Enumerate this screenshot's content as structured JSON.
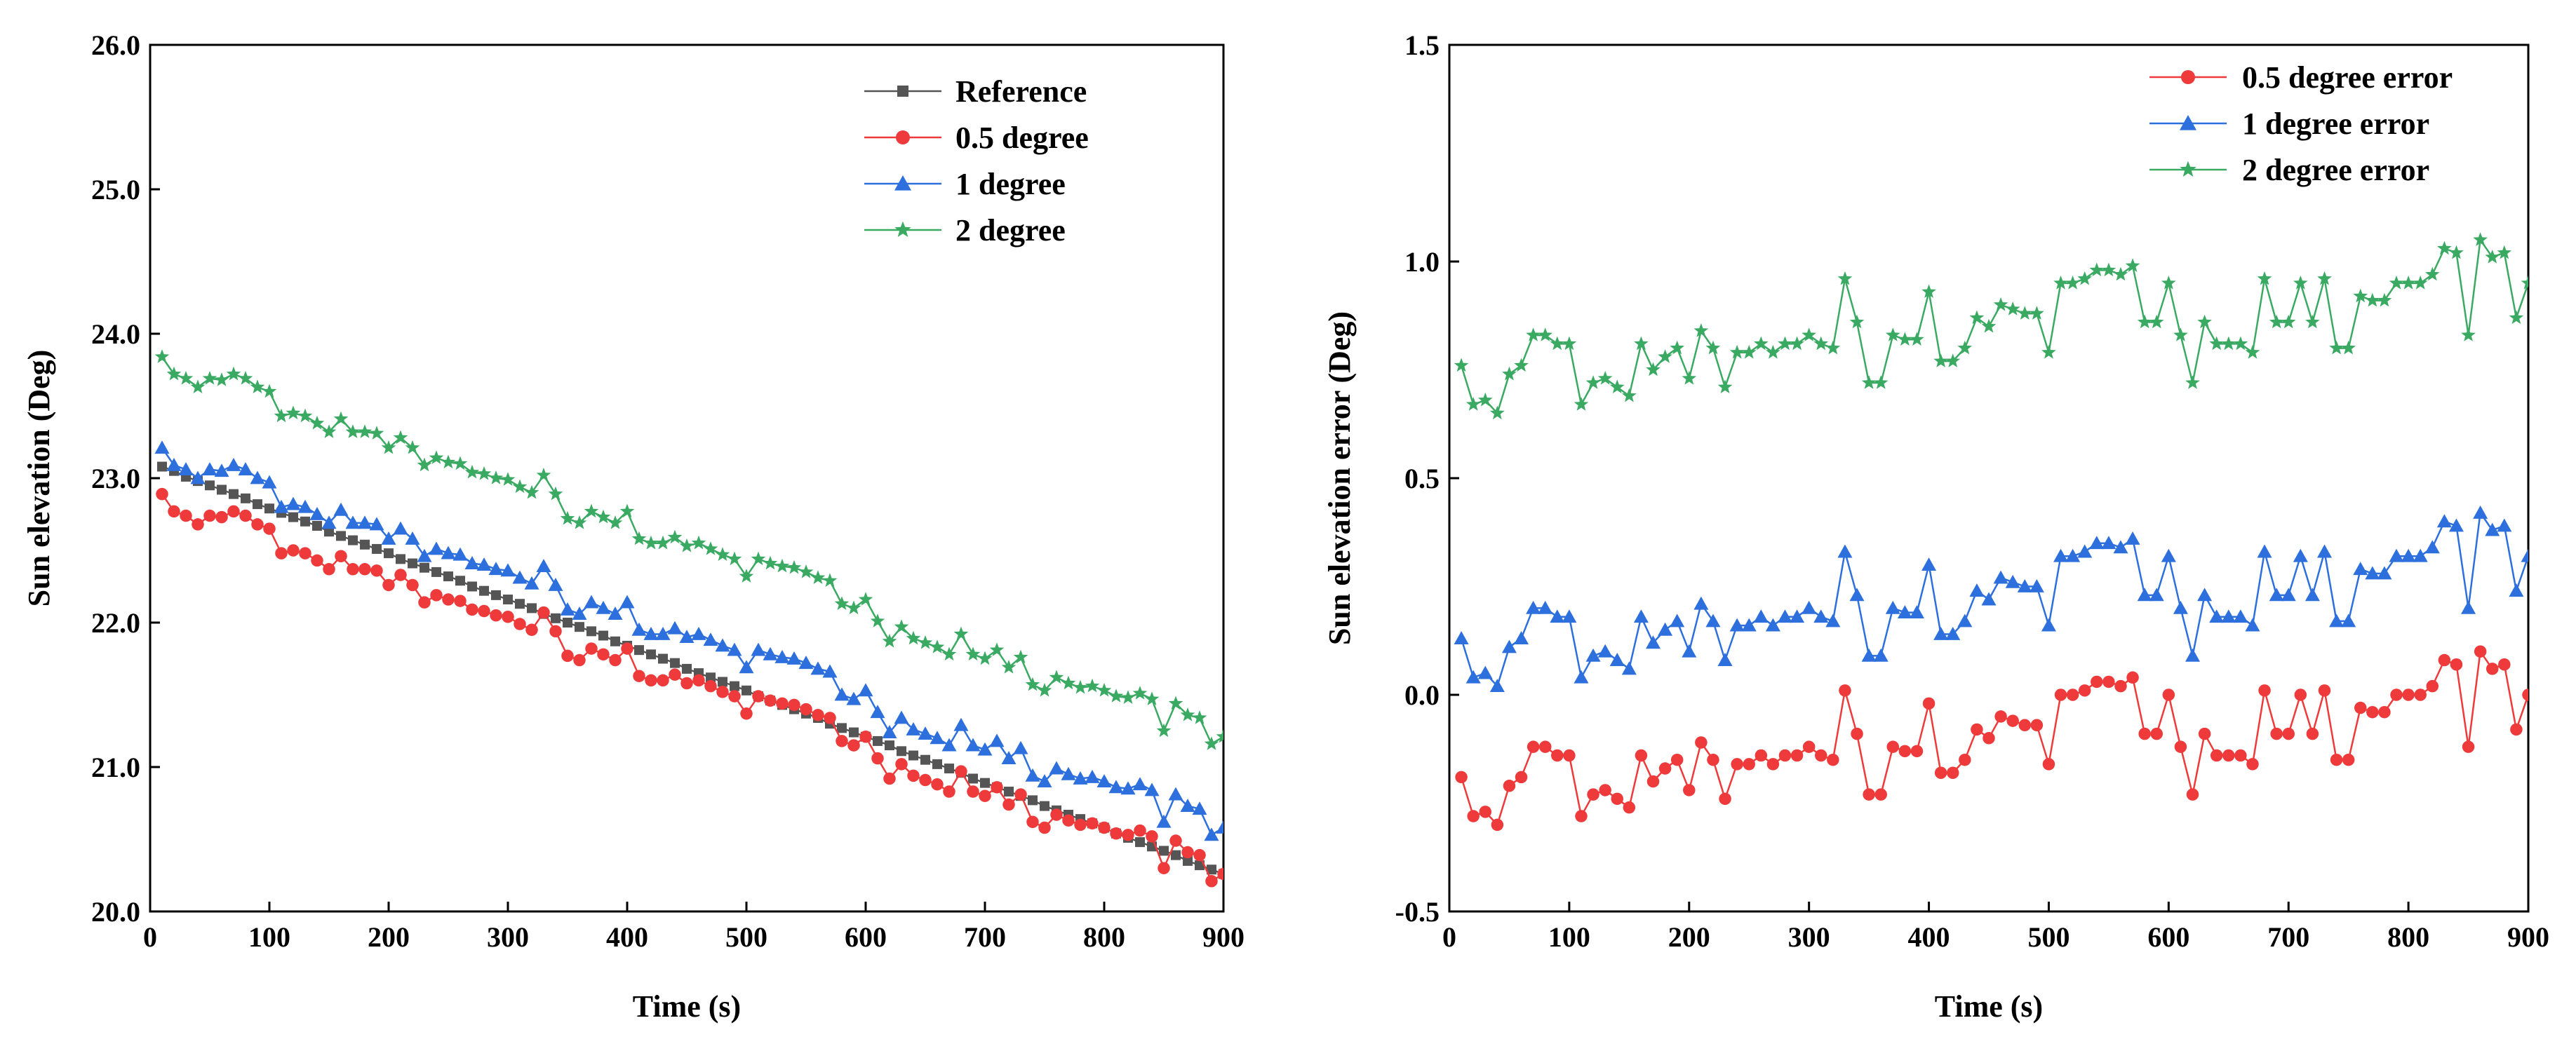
{
  "chart_data": [
    {
      "type": "line",
      "title": "",
      "xlabel": "Time (s)",
      "ylabel": "Sun elevation (Deg)",
      "xlim": [
        0,
        900
      ],
      "ylim": [
        20.0,
        26.0
      ],
      "xticks": [
        0,
        100,
        200,
        300,
        400,
        500,
        600,
        700,
        800,
        900
      ],
      "yticks": [
        20.0,
        21.0,
        22.0,
        23.0,
        24.0,
        25.0,
        26.0
      ],
      "xtick_labels": [
        "0",
        "100",
        "200",
        "300",
        "400",
        "500",
        "600",
        "700",
        "800",
        "900"
      ],
      "ytick_labels": [
        "20.0",
        "21.0",
        "22.0",
        "23.0",
        "24.0",
        "25.0",
        "26.0"
      ],
      "legend_position": "top-right",
      "x": [
        10,
        20,
        30,
        40,
        50,
        60,
        70,
        80,
        90,
        100,
        110,
        120,
        130,
        140,
        150,
        160,
        170,
        180,
        190,
        200,
        210,
        220,
        230,
        240,
        250,
        260,
        270,
        280,
        290,
        300,
        310,
        320,
        330,
        340,
        350,
        360,
        370,
        380,
        390,
        400,
        410,
        420,
        430,
        440,
        450,
        460,
        470,
        480,
        490,
        500,
        510,
        520,
        530,
        540,
        550,
        560,
        570,
        580,
        590,
        600,
        610,
        620,
        630,
        640,
        650,
        660,
        670,
        680,
        690,
        700,
        710,
        720,
        730,
        740,
        750,
        760,
        770,
        780,
        790,
        800,
        810,
        820,
        830,
        840,
        850,
        860,
        870,
        880,
        890,
        900
      ],
      "series": [
        {
          "name": "Reference",
          "color": "#555555",
          "marker": "square",
          "values": [
            23.08,
            23.05,
            23.01,
            22.98,
            22.95,
            22.92,
            22.89,
            22.86,
            22.82,
            22.79,
            22.76,
            22.73,
            22.7,
            22.67,
            22.63,
            22.6,
            22.57,
            22.54,
            22.51,
            22.48,
            22.44,
            22.41,
            22.38,
            22.35,
            22.32,
            22.29,
            22.25,
            22.22,
            22.19,
            22.16,
            22.13,
            22.1,
            22.06,
            22.03,
            22.0,
            21.97,
            21.94,
            21.91,
            21.87,
            21.84,
            21.81,
            21.78,
            21.75,
            21.72,
            21.68,
            21.65,
            21.62,
            21.59,
            21.56,
            21.53,
            21.49,
            21.46,
            21.43,
            21.4,
            21.37,
            21.34,
            21.3,
            21.27,
            21.24,
            21.21,
            21.18,
            21.15,
            21.11,
            21.08,
            21.05,
            21.02,
            20.99,
            20.96,
            20.92,
            20.89,
            20.86,
            20.83,
            20.8,
            20.77,
            20.73,
            20.7,
            20.67,
            20.64,
            20.61,
            20.58,
            20.54,
            20.51,
            20.48,
            20.45,
            20.42,
            20.39,
            20.35,
            20.32,
            20.29,
            20.26
          ]
        },
        {
          "name": "0.5 degree",
          "color": "#ee3a3a",
          "marker": "circle",
          "values": [
            22.89,
            22.77,
            22.74,
            22.68,
            22.74,
            22.73,
            22.77,
            22.74,
            22.68,
            22.65,
            22.48,
            22.5,
            22.48,
            22.43,
            22.37,
            22.46,
            22.37,
            22.37,
            22.36,
            22.26,
            22.33,
            22.26,
            22.14,
            22.19,
            22.16,
            22.15,
            22.09,
            22.08,
            22.05,
            22.04,
            21.99,
            21.95,
            22.07,
            21.94,
            21.77,
            21.74,
            21.82,
            21.78,
            21.74,
            21.82,
            21.63,
            21.6,
            21.6,
            21.64,
            21.58,
            21.6,
            21.56,
            21.52,
            21.49,
            21.37,
            21.49,
            21.46,
            21.44,
            21.43,
            21.4,
            21.36,
            21.34,
            21.18,
            21.15,
            21.21,
            21.06,
            20.92,
            21.02,
            20.94,
            20.91,
            20.88,
            20.83,
            20.97,
            20.83,
            20.8,
            20.86,
            20.74,
            20.81,
            20.62,
            20.58,
            20.67,
            20.63,
            20.6,
            20.61,
            20.58,
            20.54,
            20.53,
            20.56,
            20.52,
            20.3,
            20.49,
            20.41,
            20.39,
            20.21,
            20.26
          ]
        },
        {
          "name": "1 degree",
          "color": "#2c6fdd",
          "marker": "triangle",
          "values": [
            23.21,
            23.09,
            23.06,
            23.0,
            23.06,
            23.05,
            23.09,
            23.06,
            23.0,
            22.97,
            22.8,
            22.82,
            22.8,
            22.75,
            22.69,
            22.78,
            22.69,
            22.69,
            22.68,
            22.58,
            22.65,
            22.58,
            22.46,
            22.51,
            22.48,
            22.47,
            22.41,
            22.4,
            22.37,
            22.36,
            22.31,
            22.27,
            22.39,
            22.26,
            22.09,
            22.06,
            22.14,
            22.1,
            22.06,
            22.14,
            21.95,
            21.92,
            21.92,
            21.96,
            21.9,
            21.92,
            21.88,
            21.84,
            21.81,
            21.69,
            21.81,
            21.78,
            21.76,
            21.75,
            21.72,
            21.68,
            21.66,
            21.5,
            21.47,
            21.53,
            21.38,
            21.24,
            21.34,
            21.26,
            21.23,
            21.2,
            21.15,
            21.29,
            21.15,
            21.12,
            21.18,
            21.06,
            21.13,
            20.94,
            20.9,
            20.99,
            20.95,
            20.92,
            20.93,
            20.9,
            20.86,
            20.85,
            20.88,
            20.84,
            20.62,
            20.81,
            20.73,
            20.71,
            20.53,
            20.58
          ]
        },
        {
          "name": "2 degree",
          "color": "#3aaa62",
          "marker": "star",
          "values": [
            23.84,
            23.72,
            23.69,
            23.63,
            23.69,
            23.68,
            23.72,
            23.69,
            23.63,
            23.6,
            23.43,
            23.45,
            23.43,
            23.38,
            23.32,
            23.41,
            23.32,
            23.32,
            23.31,
            23.21,
            23.28,
            23.21,
            23.09,
            23.14,
            23.11,
            23.1,
            23.04,
            23.03,
            23.0,
            22.99,
            22.94,
            22.9,
            23.02,
            22.89,
            22.72,
            22.69,
            22.77,
            22.73,
            22.69,
            22.77,
            22.58,
            22.55,
            22.55,
            22.59,
            22.53,
            22.55,
            22.51,
            22.47,
            22.44,
            22.32,
            22.44,
            22.41,
            22.39,
            22.38,
            22.35,
            22.31,
            22.29,
            22.13,
            22.1,
            22.16,
            22.01,
            21.87,
            21.97,
            21.89,
            21.86,
            21.83,
            21.78,
            21.92,
            21.78,
            21.75,
            21.81,
            21.69,
            21.76,
            21.57,
            21.53,
            21.62,
            21.58,
            21.55,
            21.56,
            21.53,
            21.49,
            21.48,
            21.51,
            21.47,
            21.25,
            21.44,
            21.36,
            21.34,
            21.16,
            21.21
          ]
        }
      ]
    },
    {
      "type": "line",
      "title": "",
      "xlabel": "Time (s)",
      "ylabel": "Sun elevation error (Deg)",
      "xlim": [
        0,
        900
      ],
      "ylim": [
        -0.5,
        1.5
      ],
      "xticks": [
        0,
        100,
        200,
        300,
        400,
        500,
        600,
        700,
        800,
        900
      ],
      "yticks": [
        -0.5,
        0.0,
        0.5,
        1.0,
        1.5
      ],
      "xtick_labels": [
        "0",
        "100",
        "200",
        "300",
        "400",
        "500",
        "600",
        "700",
        "800",
        "900"
      ],
      "ytick_labels": [
        "-0.5",
        "0.0",
        "0.5",
        "1.0",
        "1.5"
      ],
      "legend_position": "top-right",
      "x": [
        10,
        20,
        30,
        40,
        50,
        60,
        70,
        80,
        90,
        100,
        110,
        120,
        130,
        140,
        150,
        160,
        170,
        180,
        190,
        200,
        210,
        220,
        230,
        240,
        250,
        260,
        270,
        280,
        290,
        300,
        310,
        320,
        330,
        340,
        350,
        360,
        370,
        380,
        390,
        400,
        410,
        420,
        430,
        440,
        450,
        460,
        470,
        480,
        490,
        500,
        510,
        520,
        530,
        540,
        550,
        560,
        570,
        580,
        590,
        600,
        610,
        620,
        630,
        640,
        650,
        660,
        670,
        680,
        690,
        700,
        710,
        720,
        730,
        740,
        750,
        760,
        770,
        780,
        790,
        800,
        810,
        820,
        830,
        840,
        850,
        860,
        870,
        880,
        890,
        900
      ],
      "series": [
        {
          "name": "0.5 degree error",
          "color": "#ee3a3a",
          "marker": "circle",
          "values": [
            -0.19,
            -0.28,
            -0.27,
            -0.3,
            -0.21,
            -0.19,
            -0.12,
            -0.12,
            -0.14,
            -0.14,
            -0.28,
            -0.23,
            -0.22,
            -0.24,
            -0.26,
            -0.14,
            -0.2,
            -0.17,
            -0.15,
            -0.22,
            -0.11,
            -0.15,
            -0.24,
            -0.16,
            -0.16,
            -0.14,
            -0.16,
            -0.14,
            -0.14,
            -0.12,
            -0.14,
            -0.15,
            0.01,
            -0.09,
            -0.23,
            -0.23,
            -0.12,
            -0.13,
            -0.13,
            -0.02,
            -0.18,
            -0.18,
            -0.15,
            -0.08,
            -0.1,
            -0.05,
            -0.06,
            -0.07,
            -0.07,
            -0.16,
            0.0,
            0.0,
            0.01,
            0.03,
            0.03,
            0.02,
            0.04,
            -0.09,
            -0.09,
            0.0,
            -0.12,
            -0.23,
            -0.09,
            -0.14,
            -0.14,
            -0.14,
            -0.16,
            0.01,
            -0.09,
            -0.09,
            0.0,
            -0.09,
            0.01,
            -0.15,
            -0.15,
            -0.03,
            -0.04,
            -0.04,
            0.0,
            0.0,
            0.0,
            0.02,
            0.08,
            0.07,
            -0.12,
            0.1,
            0.06,
            0.07,
            -0.08,
            0.0
          ]
        },
        {
          "name": "1 degree error",
          "color": "#2c6fdd",
          "marker": "triangle",
          "values": [
            0.13,
            0.04,
            0.05,
            0.02,
            0.11,
            0.13,
            0.2,
            0.2,
            0.18,
            0.18,
            0.04,
            0.09,
            0.1,
            0.08,
            0.06,
            0.18,
            0.12,
            0.15,
            0.17,
            0.1,
            0.21,
            0.17,
            0.08,
            0.16,
            0.16,
            0.18,
            0.16,
            0.18,
            0.18,
            0.2,
            0.18,
            0.17,
            0.33,
            0.23,
            0.09,
            0.09,
            0.2,
            0.19,
            0.19,
            0.3,
            0.14,
            0.14,
            0.17,
            0.24,
            0.22,
            0.27,
            0.26,
            0.25,
            0.25,
            0.16,
            0.32,
            0.32,
            0.33,
            0.35,
            0.35,
            0.34,
            0.36,
            0.23,
            0.23,
            0.32,
            0.2,
            0.09,
            0.23,
            0.18,
            0.18,
            0.18,
            0.16,
            0.33,
            0.23,
            0.23,
            0.32,
            0.23,
            0.33,
            0.17,
            0.17,
            0.29,
            0.28,
            0.28,
            0.32,
            0.32,
            0.32,
            0.34,
            0.4,
            0.39,
            0.2,
            0.42,
            0.38,
            0.39,
            0.24,
            0.32
          ]
        },
        {
          "name": "2 degree error",
          "color": "#3aaa62",
          "marker": "star",
          "values": [
            0.76,
            0.67,
            0.68,
            0.65,
            0.74,
            0.76,
            0.83,
            0.83,
            0.81,
            0.81,
            0.67,
            0.72,
            0.73,
            0.71,
            0.69,
            0.81,
            0.75,
            0.78,
            0.8,
            0.73,
            0.84,
            0.8,
            0.71,
            0.79,
            0.79,
            0.81,
            0.79,
            0.81,
            0.81,
            0.83,
            0.81,
            0.8,
            0.96,
            0.86,
            0.72,
            0.72,
            0.83,
            0.82,
            0.82,
            0.93,
            0.77,
            0.77,
            0.8,
            0.87,
            0.85,
            0.9,
            0.89,
            0.88,
            0.88,
            0.79,
            0.95,
            0.95,
            0.96,
            0.98,
            0.98,
            0.97,
            0.99,
            0.86,
            0.86,
            0.95,
            0.83,
            0.72,
            0.86,
            0.81,
            0.81,
            0.81,
            0.79,
            0.96,
            0.86,
            0.86,
            0.95,
            0.86,
            0.96,
            0.8,
            0.8,
            0.92,
            0.91,
            0.91,
            0.95,
            0.95,
            0.95,
            0.97,
            1.03,
            1.02,
            0.83,
            1.05,
            1.01,
            1.02,
            0.87,
            0.95
          ]
        }
      ]
    }
  ]
}
